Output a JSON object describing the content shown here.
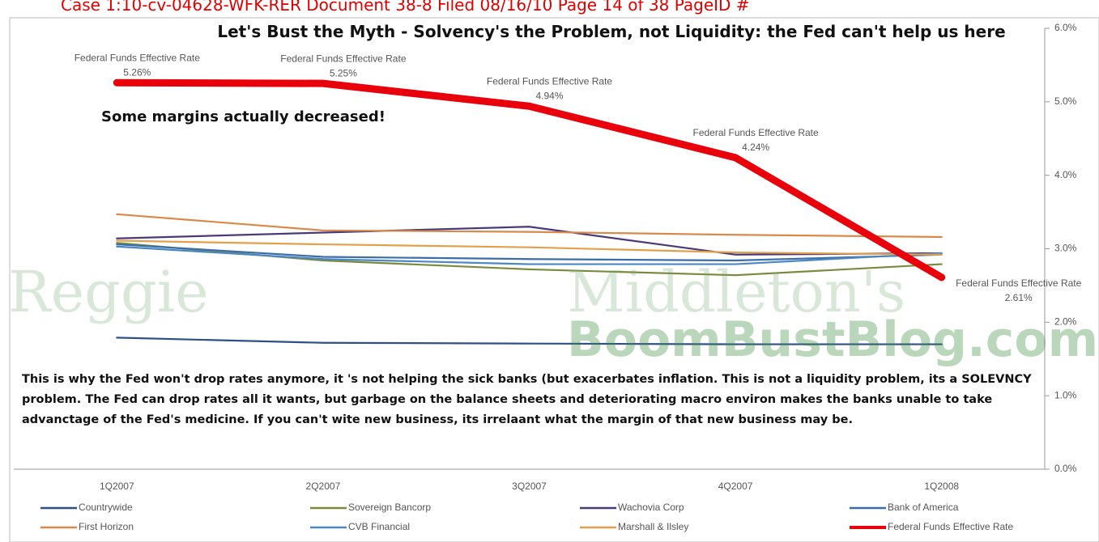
{
  "header": "Case 1:10-cv-04628-WFK-RER  Document 38-8  Filed 08/16/10  Page 14 of 38 PageID #",
  "watermark": [
    "Reggie",
    "Middleton's",
    "BoomBustBlog.com"
  ],
  "chart_data": {
    "type": "line",
    "title": "Let's Bust the Myth - Solvency's the Problem, not Liquidity: the Fed can't help us here",
    "annotations": [
      "Some margins actually decreased!",
      "This is why the Fed won't drop rates anymore, it 's not helping the sick banks (but exacerbates inflation. This is not a liquidity problem, its a SOLEVNCY problem.  The Fed can drop rates all it wants, but garbage on the balance sheets and deteriorating macro environ makes the banks unable to  take advanctage of the Fed's medicine. If you can't wite  new business, its irrelaant what the margin of that new business may be."
    ],
    "categories": [
      "1Q2007",
      "2Q2007",
      "3Q2007",
      "4Q2007",
      "1Q2008"
    ],
    "y2lim": [
      0,
      6
    ],
    "y2ticks": [
      {
        "value": 0,
        "label": "0.0%"
      },
      {
        "value": 1,
        "label": "1.0%"
      },
      {
        "value": 2,
        "label": "2.0%"
      },
      {
        "value": 3,
        "label": "3.0%"
      },
      {
        "value": 4,
        "label": "4.0%"
      },
      {
        "value": 5,
        "label": "5.0%"
      },
      {
        "value": 6,
        "label": "6.0%"
      }
    ],
    "legend": "bottom",
    "series": [
      {
        "name": "Countrywide",
        "color": "#2e4f8a",
        "axis": "y2",
        "values": [
          1.79,
          1.72,
          1.71,
          1.7,
          1.7
        ]
      },
      {
        "name": "Sovereign Bancorp",
        "color": "#7a8a3c",
        "axis": "y2",
        "values": [
          3.08,
          2.84,
          2.72,
          2.64,
          2.79
        ]
      },
      {
        "name": "Wachovia Corp",
        "color": "#4b3a7a",
        "axis": "y2",
        "values": [
          3.14,
          3.22,
          3.3,
          2.92,
          2.94
        ]
      },
      {
        "name": "Bank of America",
        "color": "#3b6ea8",
        "axis": "y2",
        "values": [
          3.06,
          2.89,
          2.86,
          2.84,
          2.92
        ]
      },
      {
        "name": "First Horizon",
        "color": "#d98a4a",
        "axis": "y2",
        "values": [
          3.47,
          3.25,
          3.23,
          3.19,
          3.16
        ]
      },
      {
        "name": "CVB Financial",
        "color": "#4a87c4",
        "axis": "y2",
        "values": [
          3.03,
          2.86,
          2.79,
          2.79,
          2.94
        ]
      },
      {
        "name": "Marshall & Ilsley",
        "color": "#e3a04a",
        "axis": "y2",
        "values": [
          3.11,
          3.06,
          3.02,
          2.95,
          2.92
        ]
      },
      {
        "name": "Federal Funds Effective Rate",
        "color": "#e8000b",
        "axis": "y2",
        "values": [
          5.26,
          5.25,
          4.94,
          4.24,
          2.61
        ],
        "value_labels": [
          "5.26%",
          "5.25%",
          "4.94%",
          "4.24%",
          "2.61%"
        ]
      }
    ]
  }
}
